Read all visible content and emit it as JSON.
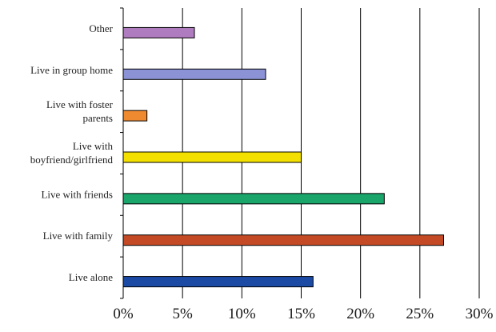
{
  "chart_data": {
    "type": "bar",
    "orientation": "horizontal",
    "title": "",
    "xlabel": "",
    "ylabel": "",
    "categories": [
      [
        "Other"
      ],
      [
        "Live in group home"
      ],
      [
        "Live with foster",
        "parents"
      ],
      [
        "Live with",
        "boyfriend/girlfriend"
      ],
      [
        "Live with friends"
      ],
      [
        "Live with family"
      ],
      [
        "Live alone"
      ]
    ],
    "values": [
      6,
      12,
      2,
      15,
      22,
      27,
      16
    ],
    "colors": [
      "#b07cc0",
      "#8b93d6",
      "#f08a30",
      "#f3e000",
      "#1aa56a",
      "#c44a26",
      "#1b4aa5"
    ],
    "xlim": [
      0,
      30
    ],
    "xticks": [
      {
        "value": 0,
        "label": "0%"
      },
      {
        "value": 5,
        "label": "5%"
      },
      {
        "value": 10,
        "label": "10%"
      },
      {
        "value": 15,
        "label": "15%"
      },
      {
        "value": 20,
        "label": "20%"
      },
      {
        "value": 25,
        "label": "25%"
      },
      {
        "value": 30,
        "label": "30%"
      }
    ],
    "grid": true,
    "legend": "none"
  }
}
